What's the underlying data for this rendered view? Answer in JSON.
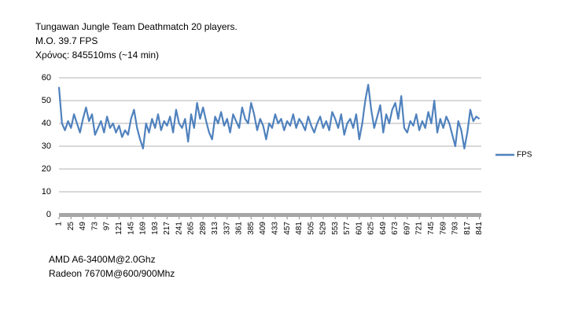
{
  "chart_data": {
    "type": "line",
    "title": "Tungawan Jungle Team Deathmatch 20 players.",
    "subtitle": [
      "M.O. 39.7 FPS",
      "Χρόνος: 845510ms (~14 min)"
    ],
    "notes": [
      "AMD A6-3400M@2.0Ghz",
      "Radeon 7670M@600/900Mhz"
    ],
    "x": [
      1,
      7,
      13,
      19,
      25,
      31,
      37,
      43,
      49,
      55,
      61,
      67,
      73,
      79,
      85,
      91,
      97,
      103,
      109,
      115,
      121,
      127,
      133,
      139,
      145,
      151,
      157,
      163,
      169,
      175,
      181,
      187,
      193,
      199,
      205,
      211,
      217,
      223,
      229,
      235,
      241,
      247,
      253,
      259,
      265,
      271,
      277,
      283,
      289,
      295,
      301,
      307,
      313,
      319,
      325,
      331,
      337,
      343,
      349,
      355,
      361,
      367,
      373,
      379,
      385,
      391,
      397,
      403,
      409,
      415,
      421,
      427,
      433,
      439,
      445,
      451,
      457,
      463,
      469,
      475,
      481,
      487,
      493,
      499,
      505,
      511,
      517,
      523,
      529,
      535,
      541,
      547,
      553,
      559,
      565,
      571,
      577,
      583,
      589,
      595,
      601,
      607,
      613,
      619,
      625,
      631,
      637,
      643,
      649,
      655,
      661,
      667,
      673,
      679,
      685,
      691,
      697,
      703,
      709,
      715,
      721,
      727,
      733,
      739,
      745,
      751,
      757,
      763,
      769,
      775,
      781,
      787,
      793,
      799,
      805,
      811,
      817,
      823,
      829,
      835,
      841
    ],
    "series": [
      {
        "name": "FPS",
        "color": "#4f81bd",
        "values": [
          56,
          40,
          37,
          41,
          38,
          44,
          40,
          36,
          42,
          47,
          41,
          44,
          35,
          38,
          41,
          36,
          43,
          38,
          40,
          36,
          39,
          34,
          37,
          35,
          42,
          46,
          38,
          33,
          29,
          40,
          36,
          42,
          38,
          44,
          37,
          41,
          39,
          43,
          36,
          46,
          40,
          38,
          42,
          32,
          44,
          38,
          49,
          42,
          47,
          41,
          36,
          33,
          43,
          40,
          45,
          39,
          42,
          36,
          44,
          41,
          38,
          47,
          42,
          40,
          49,
          44,
          37,
          42,
          39,
          33,
          40,
          38,
          44,
          40,
          42,
          37,
          41,
          39,
          44,
          38,
          42,
          40,
          37,
          43,
          39,
          36,
          40,
          43,
          38,
          41,
          37,
          45,
          42,
          38,
          44,
          35,
          40,
          42,
          38,
          44,
          33,
          40,
          50,
          57,
          46,
          38,
          43,
          48,
          36,
          44,
          40,
          46,
          49,
          42,
          52,
          38,
          36,
          41,
          39,
          44,
          37,
          41,
          38,
          45,
          40,
          50,
          36,
          42,
          38,
          43,
          40,
          35,
          30,
          41,
          37,
          29,
          36,
          46,
          41,
          43,
          42
        ]
      }
    ],
    "xlim": [
      1,
      845
    ],
    "xticks": [
      1,
      25,
      49,
      73,
      97,
      121,
      145,
      169,
      193,
      217,
      241,
      265,
      289,
      313,
      337,
      361,
      385,
      409,
      433,
      457,
      481,
      505,
      529,
      553,
      577,
      601,
      625,
      649,
      673,
      697,
      721,
      745,
      769,
      793,
      817,
      841
    ],
    "ylim": [
      0,
      60
    ],
    "yticks": [
      0,
      10,
      20,
      30,
      40,
      50,
      60
    ],
    "grid": true,
    "legend": "right"
  }
}
